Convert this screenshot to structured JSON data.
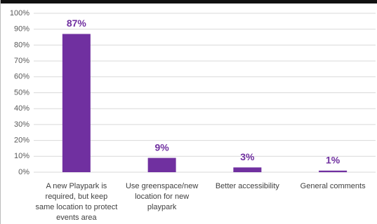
{
  "chart_data": {
    "type": "bar",
    "categories": [
      "A new Playpark is required, but keep same location to protect events area",
      "Use greenspace/new location for new playpark",
      "Better accessibility",
      "General comments"
    ],
    "values": [
      87,
      9,
      3,
      1
    ],
    "value_labels": [
      "87%",
      "9%",
      "3%",
      "1%"
    ],
    "color": "#7030a0",
    "ylim": [
      0,
      100
    ],
    "yticks": [
      {
        "value": 0,
        "label": "0%"
      },
      {
        "value": 10,
        "label": "10%"
      },
      {
        "value": 20,
        "label": "20%"
      },
      {
        "value": 30,
        "label": "30%"
      },
      {
        "value": 40,
        "label": "40%"
      },
      {
        "value": 50,
        "label": "50%"
      },
      {
        "value": 60,
        "label": "60%"
      },
      {
        "value": 70,
        "label": "70%"
      },
      {
        "value": 80,
        "label": "80%"
      },
      {
        "value": 90,
        "label": "90%"
      },
      {
        "value": 100,
        "label": "100%"
      }
    ],
    "grid": true
  }
}
